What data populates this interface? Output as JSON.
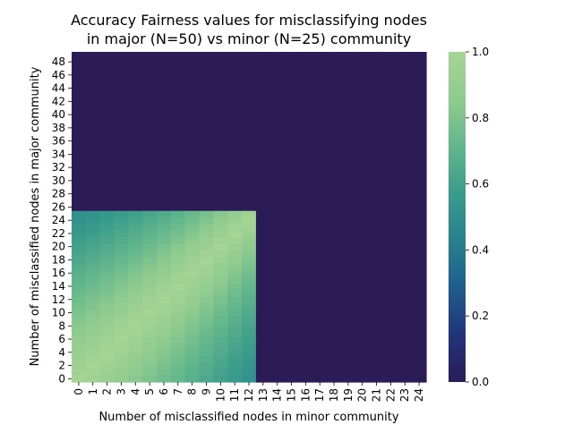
{
  "chart_data": {
    "type": "heatmap",
    "title": [
      "Accuracy Fairness values for misclassifying nodes",
      "in major (N=50) vs minor (N=25) community"
    ],
    "xlabel": "Number of misclassified nodes in minor community",
    "ylabel": "Number of misclassified nodes in major community",
    "x_ticks": [
      "0",
      "1",
      "2",
      "3",
      "4",
      "5",
      "6",
      "7",
      "8",
      "9",
      "10",
      "11",
      "12",
      "13",
      "14",
      "15",
      "16",
      "17",
      "18",
      "19",
      "20",
      "21",
      "22",
      "23",
      "24"
    ],
    "y_ticks": [
      "48",
      "46",
      "44",
      "42",
      "40",
      "38",
      "36",
      "34",
      "32",
      "30",
      "28",
      "26",
      "24",
      "22",
      "20",
      "18",
      "16",
      "14",
      "12",
      "10",
      "8",
      "6",
      "4",
      "2",
      "0"
    ],
    "x_range": [
      0,
      24
    ],
    "y_range": [
      0,
      49
    ],
    "value_formula": "1 - |x/25 - y/50| / max(x/25, y/50, 1 - x/25, 1 - y/50); cells with the larger misclassification ratio above 0.5 clipped to 0",
    "colorbar": {
      "min": 0.0,
      "max": 1.0,
      "ticks": [
        "0.0",
        "0.2",
        "0.4",
        "0.6",
        "0.8",
        "1.0"
      ]
    },
    "colormap": [
      "#2b1c57",
      "#22337a",
      "#1e5d8d",
      "#27818e",
      "#3a9c8b",
      "#62b68c",
      "#8fcb8f",
      "#a6d494"
    ]
  }
}
